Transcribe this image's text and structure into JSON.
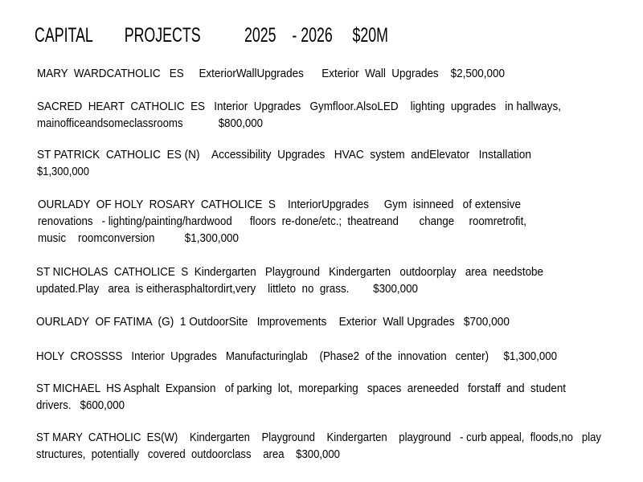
{
  "title": "CAPITAL        PROJECTS           2025    - 2026     $20M",
  "projects": [
    {
      "lines": [
        "MARY  WARDCATHOLIC   ES     ExteriorWallUpgrades      Exterior  Wall  Upgrades    $2,500,000"
      ]
    },
    {
      "lines": [
        "SACRED  HEART  CATHOLIC  ES   Interior  Upgrades   Gymfloor.AlsoLED    lighting  upgrades   in hallways,",
        "mainofficeandsomeclassrooms            $800,000"
      ]
    },
    {
      "lines": [
        "ST PATRICK  CATHOLIC  ES (N)    Accessibility  Upgrades   HVAC  system  andElevator   Installation",
        "$1,300,000"
      ]
    },
    {
      "lines": [
        "OURLADY  OF HOLY  ROSARY  CATHOLICE  S    InteriorUpgrades     Gym  isinneed   of extensive",
        "renovations   - lighting/painting/hardwood      floors  re-done/etc.;  theatreand       change     roomretrofit,",
        "music    roomconversion          $1,300,000"
      ]
    },
    {
      "lines": [
        "ST NICHOLAS  CATHOLICE  S  Kindergarten   Playground   Kindergarten   outdoorplay   area  needstobe",
        "updated.Play   area  is eitherasphaltordirt,very    littleto  no  grass.        $300,000"
      ]
    },
    {
      "lines": [
        "OURLADY  OF FATIMA  (G)  1 OutdoorSite   Improvements    Exterior  Wall Upgrades   $700,000"
      ]
    },
    {
      "lines": [
        "HOLY  CROSSSS   Interior  Upgrades   Manufacturinglab    (Phase2  of the  innovation   center)     $1,300,000"
      ]
    },
    {
      "lines": [
        "ST MICHAEL  HS Asphalt  Expansion   of parking  lot,  moreparking   spaces  areneeded   forstaff  and  student",
        "drivers.   $600,000"
      ]
    },
    {
      "lines": [
        "ST MARY  CATHOLIC  ES(W)    Kindergarten    Playground    Kindergarten    playground   - curb appeal,  floods,no   play",
        "structures,  potentially   covered  outdoorclass    area    $300,000"
      ]
    }
  ]
}
